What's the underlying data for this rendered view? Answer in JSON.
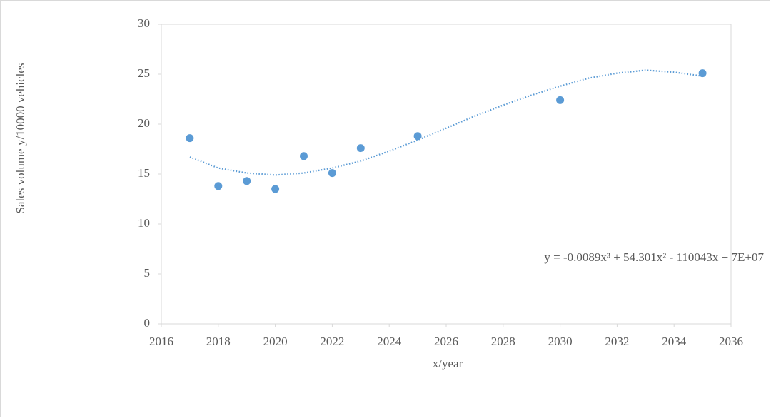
{
  "chart_data": {
    "type": "scatter",
    "x_label": "x/year",
    "y_label": "Sales volume  y/10000  vehicles",
    "annotation": "y = -0.0089x³  + 54.301x²  - 110043x  + 7E+07",
    "xlim": [
      2016,
      2036
    ],
    "xticks": [
      2016,
      2018,
      2020,
      2022,
      2024,
      2026,
      2028,
      2030,
      2032,
      2034,
      2036
    ],
    "ylim": [
      0,
      30
    ],
    "yticks": [
      0,
      5,
      10,
      15,
      20,
      25,
      30
    ],
    "grid": false,
    "series": [
      {
        "color": "#5b9bd5",
        "style": "markers",
        "x": [
          2017,
          2018,
          2019,
          2020,
          2021,
          2022,
          2023,
          2025,
          2030,
          2035
        ],
        "values": [
          18.6,
          13.8,
          14.3,
          13.5,
          16.8,
          15.1,
          17.6,
          18.8,
          22.4,
          25.1
        ]
      },
      {
        "color": "#5b9bd5",
        "style": "dotted",
        "x": [
          2017,
          2018,
          2019,
          2020,
          2021,
          2022,
          2023,
          2024,
          2025,
          2026,
          2027,
          2028,
          2029,
          2030,
          2031,
          2032,
          2033,
          2034,
          2035
        ],
        "values": [
          16.7,
          15.6,
          15.1,
          14.9,
          15.1,
          15.6,
          16.3,
          17.3,
          18.4,
          19.6,
          20.8,
          21.9,
          22.9,
          23.8,
          24.6,
          25.1,
          25.4,
          25.2,
          24.8
        ]
      }
    ]
  }
}
